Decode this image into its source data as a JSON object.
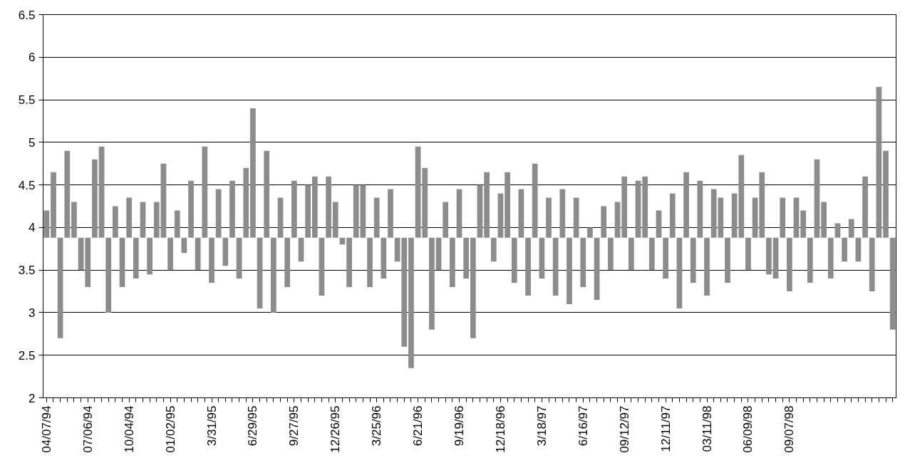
{
  "chart_data": {
    "type": "bar",
    "categories": [
      "04/07/94",
      null,
      null,
      null,
      null,
      null,
      "07/06/94",
      null,
      null,
      null,
      null,
      null,
      "10/04/94",
      null,
      null,
      null,
      null,
      null,
      "01/02/95",
      null,
      null,
      null,
      null,
      null,
      "3/31/95",
      null,
      null,
      null,
      null,
      null,
      "6/29/95",
      null,
      null,
      null,
      null,
      null,
      "9/27/95",
      null,
      null,
      null,
      null,
      null,
      "12/26/95",
      null,
      null,
      null,
      null,
      null,
      "3/25/96",
      null,
      null,
      null,
      null,
      null,
      "6/21/96",
      null,
      null,
      null,
      null,
      null,
      "9/19/96",
      null,
      null,
      null,
      null,
      null,
      "12/18/96",
      null,
      null,
      null,
      null,
      null,
      "3/18/97",
      null,
      null,
      null,
      null,
      null,
      "6/16/97",
      null,
      null,
      null,
      null,
      null,
      "09/12/97",
      null,
      null,
      null,
      null,
      null,
      "12/11/97",
      null,
      null,
      null,
      null,
      null,
      "03/11/98",
      null,
      null,
      null,
      null,
      null,
      "06/09/98",
      null,
      null,
      null,
      null,
      null,
      "09/07/98",
      null,
      null,
      null,
      null,
      null,
      null,
      null,
      null,
      null,
      null,
      null,
      null,
      null,
      null,
      null
    ],
    "values": [
      0.32,
      0.77,
      -1.18,
      1.02,
      0.42,
      -0.38,
      -0.58,
      0.92,
      1.07,
      -0.88,
      0.37,
      -0.58,
      0.47,
      -0.48,
      0.42,
      -0.43,
      0.42,
      0.87,
      -0.38,
      0.32,
      -0.18,
      0.67,
      -0.38,
      1.07,
      -0.53,
      0.57,
      -0.33,
      0.67,
      -0.48,
      0.82,
      1.52,
      -0.83,
      1.02,
      -0.88,
      0.47,
      -0.58,
      0.67,
      -0.28,
      0.62,
      0.72,
      -0.68,
      0.72,
      0.42,
      -0.08,
      -0.58,
      0.62,
      0.62,
      -0.58,
      0.47,
      -0.48,
      0.57,
      -0.28,
      -1.28,
      -1.53,
      1.07,
      0.82,
      -1.08,
      -0.38,
      0.42,
      -0.58,
      0.57,
      -0.48,
      -1.18,
      0.62,
      0.77,
      -0.28,
      0.52,
      0.77,
      -0.53,
      0.57,
      -0.68,
      0.87,
      -0.48,
      0.47,
      -0.68,
      0.57,
      -0.78,
      0.47,
      -0.58,
      0.12,
      -0.73,
      0.37,
      -0.38,
      0.42,
      0.72,
      -0.38,
      0.67,
      0.72,
      -0.38,
      0.32,
      -0.48,
      0.52,
      -0.83,
      0.77,
      -0.53,
      0.67,
      -0.68,
      0.57,
      0.47,
      -0.53,
      0.52,
      0.97,
      -0.38,
      0.47,
      0.77,
      -0.43,
      -0.48,
      0.47,
      -0.63,
      0.47,
      0.32,
      -0.53,
      0.92,
      0.42,
      -0.48,
      0.17,
      -0.28,
      0.22,
      -0.28,
      0.72,
      -0.63,
      1.77,
      1.02,
      -1.08
    ],
    "base": [
      3.88,
      3.88,
      3.88,
      3.88,
      3.88,
      3.88,
      3.88,
      3.88,
      3.88,
      3.88,
      3.88,
      3.88,
      3.88,
      3.88,
      3.88,
      3.88,
      3.88,
      3.88,
      3.88,
      3.88,
      3.88,
      3.88,
      3.88,
      3.88,
      3.88,
      3.88,
      3.88,
      3.88,
      3.88,
      3.88,
      3.88,
      3.88,
      3.88,
      3.88,
      3.88,
      3.88,
      3.88,
      3.88,
      3.88,
      3.88,
      3.88,
      3.88,
      3.88,
      3.88,
      3.88,
      3.88,
      3.88,
      3.88,
      3.88,
      3.88,
      3.88,
      3.88,
      3.88,
      3.88,
      3.88,
      3.88,
      3.88,
      3.88,
      3.88,
      3.88,
      3.88,
      3.88,
      3.88,
      3.88,
      3.88,
      3.88,
      3.88,
      3.88,
      3.88,
      3.88,
      3.88,
      3.88,
      3.88,
      3.88,
      3.88,
      3.88,
      3.88,
      3.88,
      3.88,
      3.88,
      3.88,
      3.88,
      3.88,
      3.88,
      3.88,
      3.88,
      3.88,
      3.88,
      3.88,
      3.88,
      3.88,
      3.88,
      3.88,
      3.88,
      3.88,
      3.88,
      3.88,
      3.88,
      3.88,
      3.88,
      3.88,
      3.88,
      3.88,
      3.88,
      3.88,
      3.88,
      3.88,
      3.88,
      3.88,
      3.88,
      3.88,
      3.88,
      3.88,
      3.88,
      3.88,
      3.88,
      3.88,
      3.88,
      3.88,
      3.88,
      3.88,
      3.88,
      3.88,
      3.88
    ],
    "color": "#8c8c8c",
    "ylim": [
      2,
      6.5
    ],
    "yticks": [
      2,
      2.5,
      3,
      3.5,
      4,
      4.5,
      5,
      5.5,
      6,
      6.5
    ],
    "grid": "y"
  }
}
